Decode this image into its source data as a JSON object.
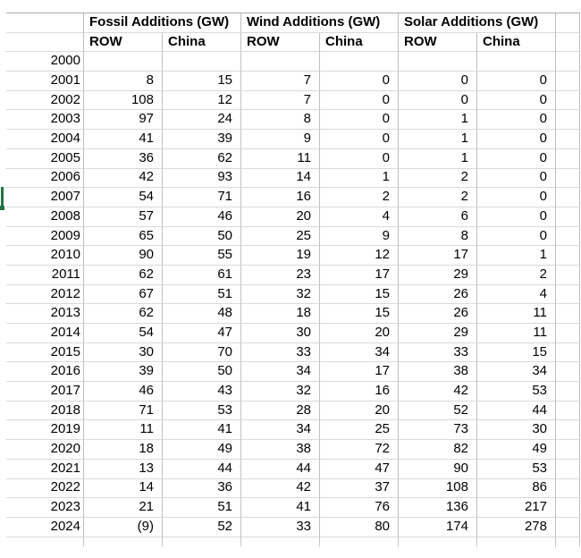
{
  "table": {
    "groups": [
      "Fossil Additions (GW)",
      "Wind Additions (GW)",
      "Solar Additions (GW)"
    ],
    "subheaders": [
      "ROW",
      "China",
      "ROW",
      "China",
      "ROW",
      "China"
    ],
    "rows": [
      {
        "year": "2000",
        "values": [
          "",
          "",
          "",
          "",
          "",
          ""
        ]
      },
      {
        "year": "2001",
        "values": [
          "8",
          "15",
          "7",
          "0",
          "0",
          "0"
        ]
      },
      {
        "year": "2002",
        "values": [
          "108",
          "12",
          "7",
          "0",
          "0",
          "0"
        ]
      },
      {
        "year": "2003",
        "values": [
          "97",
          "24",
          "8",
          "0",
          "1",
          "0"
        ]
      },
      {
        "year": "2004",
        "values": [
          "41",
          "39",
          "9",
          "0",
          "1",
          "0"
        ]
      },
      {
        "year": "2005",
        "values": [
          "36",
          "62",
          "11",
          "0",
          "1",
          "0"
        ]
      },
      {
        "year": "2006",
        "values": [
          "42",
          "93",
          "14",
          "1",
          "2",
          "0"
        ]
      },
      {
        "year": "2007",
        "values": [
          "54",
          "71",
          "16",
          "2",
          "2",
          "0"
        ]
      },
      {
        "year": "2008",
        "values": [
          "57",
          "46",
          "20",
          "4",
          "6",
          "0"
        ]
      },
      {
        "year": "2009",
        "values": [
          "65",
          "50",
          "25",
          "9",
          "8",
          "0"
        ]
      },
      {
        "year": "2010",
        "values": [
          "90",
          "55",
          "19",
          "12",
          "17",
          "1"
        ]
      },
      {
        "year": "2011",
        "values": [
          "62",
          "61",
          "23",
          "17",
          "29",
          "2"
        ]
      },
      {
        "year": "2012",
        "values": [
          "67",
          "51",
          "32",
          "15",
          "26",
          "4"
        ]
      },
      {
        "year": "2013",
        "values": [
          "62",
          "48",
          "18",
          "15",
          "26",
          "11"
        ]
      },
      {
        "year": "2014",
        "values": [
          "54",
          "47",
          "30",
          "20",
          "29",
          "11"
        ]
      },
      {
        "year": "2015",
        "values": [
          "30",
          "70",
          "33",
          "34",
          "33",
          "15"
        ]
      },
      {
        "year": "2016",
        "values": [
          "39",
          "50",
          "34",
          "17",
          "38",
          "34"
        ]
      },
      {
        "year": "2017",
        "values": [
          "46",
          "43",
          "32",
          "16",
          "42",
          "53"
        ]
      },
      {
        "year": "2018",
        "values": [
          "71",
          "53",
          "28",
          "20",
          "52",
          "44"
        ]
      },
      {
        "year": "2019",
        "values": [
          "11",
          "41",
          "34",
          "25",
          "73",
          "30"
        ]
      },
      {
        "year": "2020",
        "values": [
          "18",
          "49",
          "38",
          "72",
          "82",
          "49"
        ]
      },
      {
        "year": "2021",
        "values": [
          "13",
          "44",
          "44",
          "47",
          "90",
          "53"
        ]
      },
      {
        "year": "2022",
        "values": [
          "14",
          "36",
          "42",
          "37",
          "108",
          "86"
        ]
      },
      {
        "year": "2023",
        "values": [
          "21",
          "51",
          "41",
          "76",
          "136",
          "217"
        ]
      },
      {
        "year": "2024",
        "values": [
          "(9)",
          "52",
          "33",
          "80",
          "174",
          "278"
        ]
      }
    ]
  },
  "selection": {
    "selected_row_year": "2007"
  },
  "colors": {
    "selection_green": "#217346",
    "gridline_vertical": "#bfbfbf",
    "gridline_horizontal": "#d9d9d9",
    "text": "#000000",
    "background": "#ffffff"
  }
}
